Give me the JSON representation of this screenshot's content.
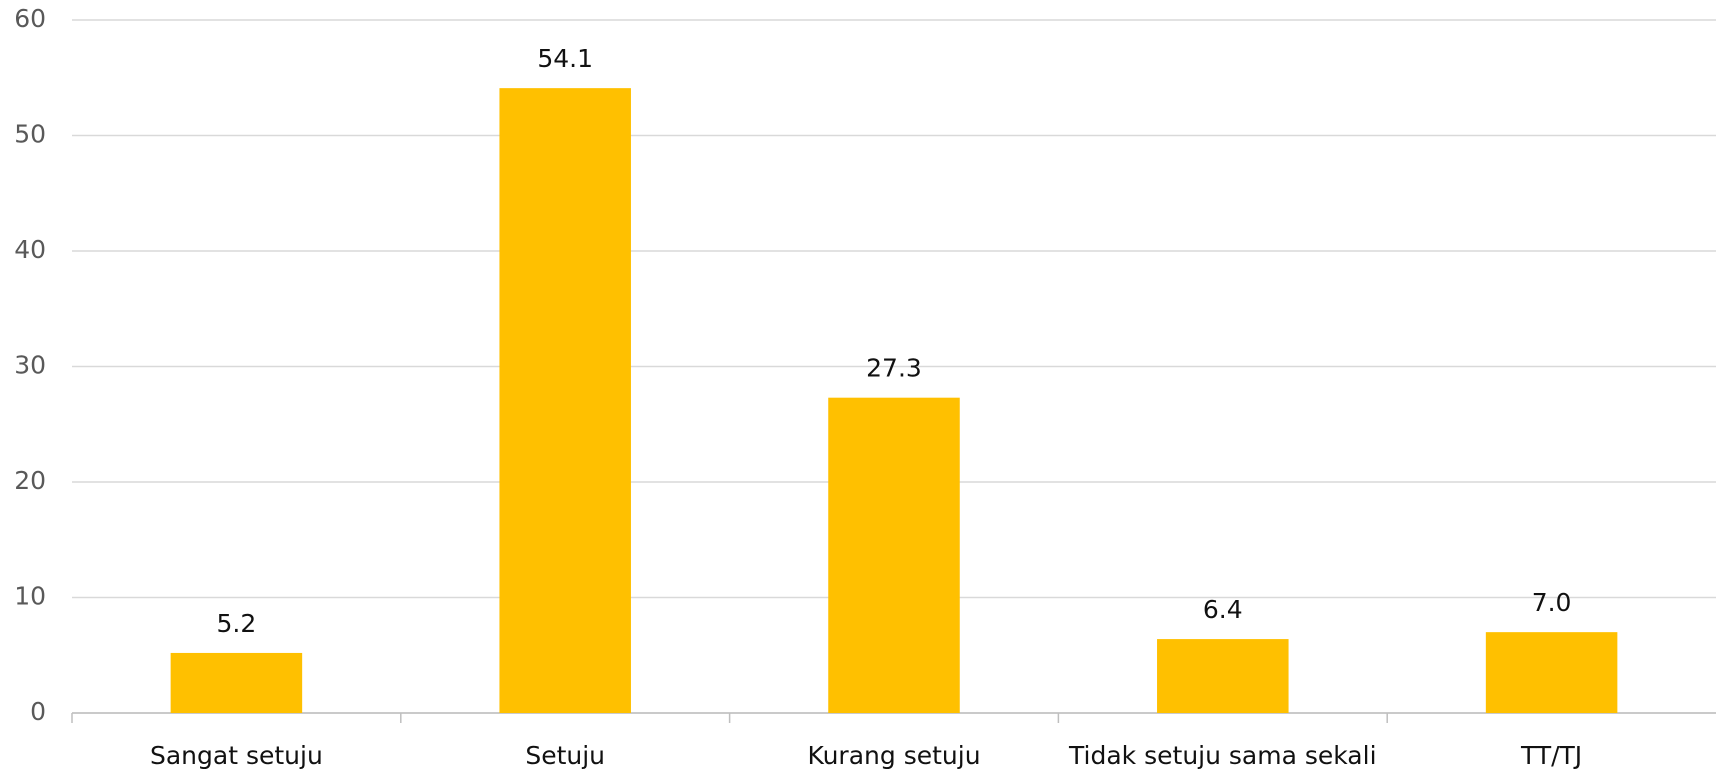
{
  "chart_data": {
    "type": "bar",
    "categories": [
      "Sangat setuju",
      "Setuju",
      "Kurang setuju",
      "Tidak setuju sama sekali",
      "TT/TJ"
    ],
    "values": [
      5.2,
      54.1,
      27.3,
      6.4,
      7.0
    ],
    "value_labels": [
      "5.2",
      "54.1",
      "27.3",
      "6.4",
      "7.0"
    ],
    "color": "#ffc000",
    "ylim": [
      0,
      60
    ],
    "yticks": [
      0,
      10,
      20,
      30,
      40,
      50,
      60
    ],
    "grid": true
  }
}
